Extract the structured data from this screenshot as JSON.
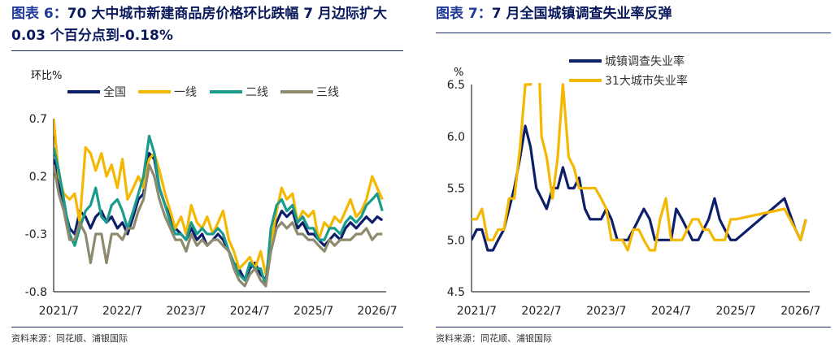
{
  "left": {
    "title_tag": "图表 6：",
    "title_text": "70 大中城市新建商品房价格环比跌幅 7 月边际扩大 0.03 个百分点到-0.18%",
    "source": "资料来源：同花顺、浦银国际",
    "chart_data": {
      "type": "line",
      "ylabel": "环比%",
      "y_ticks": [
        "0.7",
        "0.2",
        "-0.3",
        "-0.8"
      ],
      "ylim": [
        -0.8,
        0.7
      ],
      "x_ticks": [
        "2021/7",
        "2022/7",
        "2023/7",
        "2024/7",
        "2025/7",
        "2026/7"
      ],
      "xlim": [
        2021.42,
        2026.64
      ],
      "legend": "top",
      "grid": false,
      "series": [
        {
          "name": "全国",
          "color": "#0d1f6b",
          "x": [
            2021.42,
            2021.5,
            2021.58,
            2021.67,
            2021.75,
            2021.83,
            2021.92,
            2022.0,
            2022.08,
            2022.17,
            2022.25,
            2022.33,
            2022.42,
            2022.5,
            2022.58,
            2022.67,
            2022.75,
            2022.83,
            2022.92,
            2023.0,
            2023.08,
            2023.17,
            2023.25,
            2023.33,
            2023.42,
            2023.5,
            2023.58,
            2023.67,
            2023.75,
            2023.83,
            2023.92,
            2024.0,
            2024.08,
            2024.17,
            2024.25,
            2024.33,
            2024.42,
            2024.5,
            2024.58,
            2024.67,
            2024.75,
            2024.83,
            2024.92,
            2025.0,
            2025.08,
            2025.17,
            2025.25,
            2025.33,
            2025.42,
            2025.5,
            2025.58,
            2025.67,
            2025.75,
            2025.83,
            2025.92,
            2026.0,
            2026.08,
            2026.17,
            2026.25,
            2026.33,
            2026.42,
            2026.5,
            2026.58
          ],
          "values": [
            0.35,
            0.15,
            -0.05,
            -0.25,
            -0.3,
            -0.1,
            -0.15,
            -0.25,
            -0.15,
            -0.1,
            -0.2,
            -0.15,
            -0.25,
            -0.2,
            -0.3,
            -0.15,
            0.0,
            0.05,
            0.4,
            0.35,
            0.1,
            -0.05,
            -0.15,
            -0.25,
            -0.3,
            -0.35,
            -0.25,
            -0.35,
            -0.3,
            -0.4,
            -0.35,
            -0.3,
            -0.35,
            -0.45,
            -0.55,
            -0.6,
            -0.7,
            -0.6,
            -0.55,
            -0.65,
            -0.7,
            -0.35,
            -0.2,
            -0.1,
            -0.15,
            -0.1,
            -0.25,
            -0.2,
            -0.3,
            -0.3,
            -0.35,
            -0.4,
            -0.35,
            -0.3,
            -0.35,
            -0.25,
            -0.2,
            -0.25,
            -0.2,
            -0.15,
            -0.2,
            -0.15,
            -0.18
          ]
        },
        {
          "name": "一线",
          "color": "#f5b800",
          "x": [
            2021.42,
            2021.5,
            2021.58,
            2021.67,
            2021.75,
            2021.83,
            2021.92,
            2022.0,
            2022.08,
            2022.17,
            2022.25,
            2022.33,
            2022.42,
            2022.5,
            2022.58,
            2022.67,
            2022.75,
            2022.83,
            2022.92,
            2023.0,
            2023.08,
            2023.17,
            2023.25,
            2023.33,
            2023.42,
            2023.5,
            2023.58,
            2023.67,
            2023.75,
            2023.83,
            2023.92,
            2024.0,
            2024.08,
            2024.17,
            2024.25,
            2024.33,
            2024.42,
            2024.5,
            2024.58,
            2024.67,
            2024.75,
            2024.83,
            2024.92,
            2025.0,
            2025.08,
            2025.17,
            2025.25,
            2025.33,
            2025.42,
            2025.5,
            2025.58,
            2025.67,
            2025.75,
            2025.83,
            2025.92,
            2026.0,
            2026.08,
            2026.17,
            2026.25,
            2026.33,
            2026.42,
            2026.5,
            2026.58
          ],
          "values": [
            0.7,
            0.2,
            0.05,
            0.0,
            0.05,
            -0.2,
            0.45,
            0.4,
            0.25,
            0.4,
            0.2,
            0.3,
            0.1,
            0.35,
            0.0,
            0.1,
            0.2,
            0.1,
            0.35,
            0.4,
            0.25,
            0.05,
            -0.1,
            -0.25,
            -0.15,
            -0.3,
            -0.05,
            -0.2,
            -0.25,
            -0.15,
            -0.3,
            -0.2,
            -0.1,
            -0.35,
            -0.45,
            -0.6,
            -0.55,
            -0.5,
            -0.6,
            -0.45,
            -0.65,
            -0.4,
            -0.1,
            0.1,
            0.0,
            0.05,
            -0.2,
            -0.1,
            -0.15,
            -0.1,
            -0.35,
            -0.2,
            -0.25,
            -0.15,
            -0.2,
            -0.1,
            0.0,
            -0.15,
            -0.1,
            0.0,
            0.2,
            0.1,
            0.0
          ]
        },
        {
          "name": "二线",
          "color": "#1a9b8c",
          "x": [
            2021.42,
            2021.5,
            2021.58,
            2021.67,
            2021.75,
            2021.83,
            2021.92,
            2022.0,
            2022.08,
            2022.17,
            2022.25,
            2022.33,
            2022.42,
            2022.5,
            2022.58,
            2022.67,
            2022.75,
            2022.83,
            2022.92,
            2023.0,
            2023.08,
            2023.17,
            2023.25,
            2023.33,
            2023.42,
            2023.5,
            2023.58,
            2023.67,
            2023.75,
            2023.83,
            2023.92,
            2024.0,
            2024.08,
            2024.17,
            2024.25,
            2024.33,
            2024.42,
            2024.5,
            2024.58,
            2024.67,
            2024.75,
            2024.83,
            2024.92,
            2025.0,
            2025.08,
            2025.17,
            2025.25,
            2025.33,
            2025.42,
            2025.5,
            2025.58,
            2025.67,
            2025.75,
            2025.83,
            2025.92,
            2026.0,
            2026.08,
            2026.17,
            2026.25,
            2026.33,
            2026.42,
            2026.5,
            2026.58
          ],
          "values": [
            0.45,
            0.25,
            0.0,
            -0.3,
            -0.4,
            -0.25,
            -0.1,
            -0.05,
            0.1,
            -0.15,
            -0.2,
            -0.05,
            0.0,
            -0.1,
            -0.25,
            -0.1,
            0.05,
            0.2,
            0.55,
            0.4,
            0.1,
            -0.05,
            -0.2,
            -0.3,
            -0.3,
            -0.35,
            -0.2,
            -0.3,
            -0.25,
            -0.3,
            -0.3,
            -0.25,
            -0.3,
            -0.45,
            -0.55,
            -0.65,
            -0.7,
            -0.55,
            -0.6,
            -0.6,
            -0.75,
            -0.25,
            -0.05,
            0.0,
            -0.1,
            -0.05,
            -0.2,
            -0.15,
            -0.25,
            -0.25,
            -0.35,
            -0.35,
            -0.25,
            -0.25,
            -0.3,
            -0.2,
            -0.15,
            -0.2,
            -0.15,
            -0.05,
            0.0,
            0.05,
            -0.1
          ]
        },
        {
          "name": "三线",
          "color": "#8e8a6e",
          "x": [
            2021.42,
            2021.5,
            2021.58,
            2021.67,
            2021.75,
            2021.83,
            2021.92,
            2022.0,
            2022.08,
            2022.17,
            2022.25,
            2022.33,
            2022.42,
            2022.5,
            2022.58,
            2022.67,
            2022.75,
            2022.83,
            2022.92,
            2023.0,
            2023.08,
            2023.17,
            2023.25,
            2023.33,
            2023.42,
            2023.5,
            2023.58,
            2023.67,
            2023.75,
            2023.83,
            2023.92,
            2024.0,
            2024.08,
            2024.17,
            2024.25,
            2024.33,
            2024.42,
            2024.5,
            2024.58,
            2024.67,
            2024.75,
            2024.83,
            2024.92,
            2025.0,
            2025.08,
            2025.17,
            2025.25,
            2025.33,
            2025.42,
            2025.5,
            2025.58,
            2025.67,
            2025.75,
            2025.83,
            2025.92,
            2026.0,
            2026.08,
            2026.17,
            2026.25,
            2026.33,
            2026.42,
            2026.5,
            2026.58
          ],
          "values": [
            0.3,
            0.05,
            -0.1,
            -0.35,
            -0.35,
            -0.2,
            -0.3,
            -0.55,
            -0.3,
            -0.3,
            -0.55,
            -0.3,
            -0.3,
            -0.35,
            -0.25,
            -0.25,
            -0.1,
            0.0,
            0.3,
            0.2,
            0.0,
            -0.15,
            -0.25,
            -0.35,
            -0.35,
            -0.45,
            -0.3,
            -0.4,
            -0.35,
            -0.4,
            -0.35,
            -0.35,
            -0.4,
            -0.45,
            -0.6,
            -0.7,
            -0.75,
            -0.65,
            -0.6,
            -0.7,
            -0.75,
            -0.45,
            -0.25,
            -0.2,
            -0.25,
            -0.2,
            -0.3,
            -0.3,
            -0.35,
            -0.35,
            -0.4,
            -0.45,
            -0.35,
            -0.4,
            -0.35,
            -0.35,
            -0.35,
            -0.3,
            -0.3,
            -0.25,
            -0.35,
            -0.3,
            -0.3
          ]
        }
      ]
    }
  },
  "right": {
    "title_tag": "图表 7：",
    "title_text": "7 月全国城镇调查失业率反弹",
    "source": "资料来源：同花顺、浦银国际",
    "chart_data": {
      "type": "line",
      "ylabel": "%",
      "y_ticks": [
        "6.5",
        "6.0",
        "5.5",
        "5.0",
        "4.5"
      ],
      "ylim": [
        4.5,
        6.5
      ],
      "x_ticks": [
        "2021/7",
        "2022/7",
        "2023/7",
        "2024/7",
        "2025/7",
        "2026/7"
      ],
      "xlim": [
        2021.42,
        2026.64
      ],
      "legend": "top-center",
      "grid": false,
      "series": [
        {
          "name": "城镇调查失业率",
          "color": "#0d1f6b",
          "x": [
            2021.42,
            2021.5,
            2021.58,
            2021.67,
            2021.75,
            2021.83,
            2021.92,
            2022.0,
            2022.08,
            2022.17,
            2022.25,
            2022.33,
            2022.42,
            2022.5,
            2022.58,
            2022.67,
            2022.75,
            2022.83,
            2022.92,
            2023.0,
            2023.08,
            2023.17,
            2023.25,
            2023.33,
            2023.42,
            2023.5,
            2023.58,
            2023.67,
            2023.75,
            2023.83,
            2023.92,
            2024.0,
            2024.08,
            2024.17,
            2024.25,
            2024.33,
            2024.42,
            2024.5,
            2024.58,
            2024.67,
            2024.75,
            2024.83,
            2024.92,
            2025.0,
            2025.08,
            2025.17,
            2025.25,
            2025.33,
            2025.42,
            2025.5,
            2026.25,
            2026.42,
            2026.5,
            2026.58
          ],
          "values": [
            5.0,
            5.1,
            5.1,
            4.9,
            4.9,
            5.0,
            5.1,
            5.3,
            5.5,
            5.8,
            6.1,
            5.9,
            5.5,
            5.4,
            5.3,
            5.5,
            5.5,
            5.7,
            5.5,
            5.5,
            5.6,
            5.3,
            5.2,
            5.2,
            5.2,
            5.3,
            5.2,
            5.0,
            5.0,
            5.0,
            5.1,
            5.2,
            5.3,
            5.2,
            5.0,
            5.0,
            5.0,
            5.0,
            5.3,
            5.2,
            5.1,
            5.0,
            5.0,
            5.1,
            5.2,
            5.4,
            5.2,
            5.1,
            5.0,
            5.0,
            5.4,
            5.1,
            5.0,
            5.2
          ]
        },
        {
          "name": "31大城市失业率",
          "color": "#f5b800",
          "x": [
            2021.42,
            2021.5,
            2021.58,
            2021.67,
            2021.75,
            2021.83,
            2021.92,
            2022.0,
            2022.08,
            2022.17,
            2022.25,
            2022.33,
            2022.37,
            2022.45,
            2022.5,
            2022.58,
            2022.67,
            2022.75,
            2022.83,
            2022.92,
            2023.0,
            2023.08,
            2023.17,
            2023.25,
            2023.33,
            2023.42,
            2023.5,
            2023.58,
            2023.67,
            2023.75,
            2023.83,
            2023.92,
            2024.0,
            2024.08,
            2024.17,
            2024.25,
            2024.33,
            2024.42,
            2024.5,
            2024.58,
            2024.67,
            2024.75,
            2024.83,
            2024.92,
            2025.0,
            2025.08,
            2025.17,
            2025.25,
            2025.33,
            2025.42,
            2025.5,
            2026.25,
            2026.42,
            2026.5,
            2026.58
          ],
          "values": [
            5.2,
            5.2,
            5.3,
            5.0,
            5.0,
            5.1,
            5.1,
            5.4,
            5.4,
            5.9,
            6.5,
            6.5,
            6.9,
            6.9,
            6.0,
            5.8,
            5.4,
            5.8,
            6.5,
            5.8,
            5.7,
            5.5,
            5.5,
            5.5,
            5.5,
            5.4,
            5.3,
            5.0,
            5.0,
            5.0,
            4.9,
            5.1,
            5.1,
            5.0,
            4.9,
            4.9,
            5.2,
            5.4,
            5.0,
            5.0,
            5.0,
            5.1,
            5.2,
            5.2,
            5.1,
            5.1,
            5.0,
            5.0,
            5.0,
            5.2,
            5.2,
            5.3,
            5.1,
            5.0,
            5.2
          ]
        }
      ]
    }
  }
}
